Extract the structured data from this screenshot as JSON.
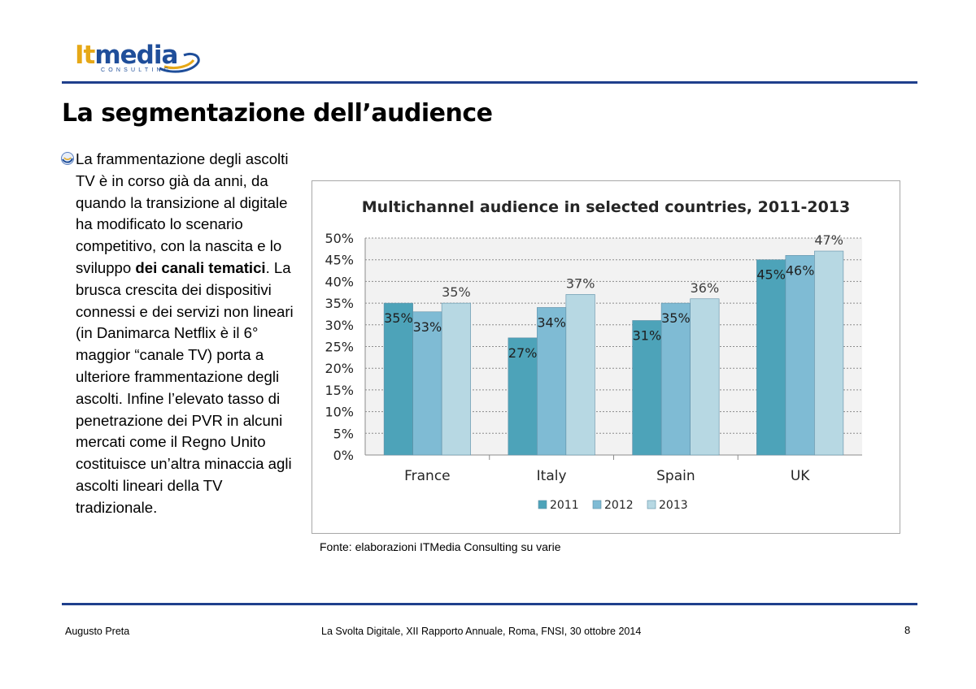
{
  "logo": {
    "brand_part1": "It",
    "brand_part2": "media",
    "subtitle": "CONSULTING"
  },
  "slide": {
    "title": "La segmentazione dell’audience",
    "paragraph": {
      "part1": "La frammentazione degli ascolti TV è in corso già da anni, da quando la transizione al digitale ha modificato lo scenario competitivo, con la nascita e lo sviluppo ",
      "bold": "dei canali tematici",
      "part2": ". La brusca crescita dei dispositivi connessi e dei servizi non lineari (in Danimarca  Netflix è il 6° maggior “canale TV) porta a ulteriore frammentazione degli ascolti. Infine  l’elevato tasso di penetrazione dei PVR in alcuni mercati come il Regno Unito costituisce un’altra minaccia agli ascolti lineari della TV tradizionale."
    },
    "source": "Fonte: elaborazioni ITMedia Consulting su varie"
  },
  "footer": {
    "author": "Augusto Preta",
    "event": "La Svolta Digitale, XII Rapporto Annuale, Roma, FNSI, 30 ottobre 2014",
    "page": "8"
  },
  "colors": {
    "series": [
      "#4da3b9",
      "#7fbbd4",
      "#b7d8e3"
    ],
    "rule": "#1f3f8c"
  },
  "chart_data": {
    "type": "bar",
    "title": "Multichannel audience in selected countries, 2011-2013",
    "categories": [
      "France",
      "Italy",
      "Spain",
      "UK"
    ],
    "series": [
      {
        "name": "2011",
        "values": [
          35,
          27,
          31,
          45
        ],
        "labels": [
          "35%",
          "27%",
          "31%",
          "45%"
        ]
      },
      {
        "name": "2012",
        "values": [
          33,
          34,
          35,
          46
        ],
        "labels": [
          "33%",
          "34%",
          "35%",
          "46%"
        ]
      },
      {
        "name": "2013",
        "values": [
          35,
          37,
          36,
          47
        ],
        "labels": [
          "35%",
          "37%",
          "36%",
          "47%"
        ]
      }
    ],
    "ylim": [
      0,
      50
    ],
    "yticks": [
      "0%",
      "5%",
      "10%",
      "15%",
      "20%",
      "25%",
      "30%",
      "35%",
      "40%",
      "45%",
      "50%"
    ],
    "xlabel": "",
    "ylabel": "",
    "legend": "bottom",
    "grid": true
  }
}
